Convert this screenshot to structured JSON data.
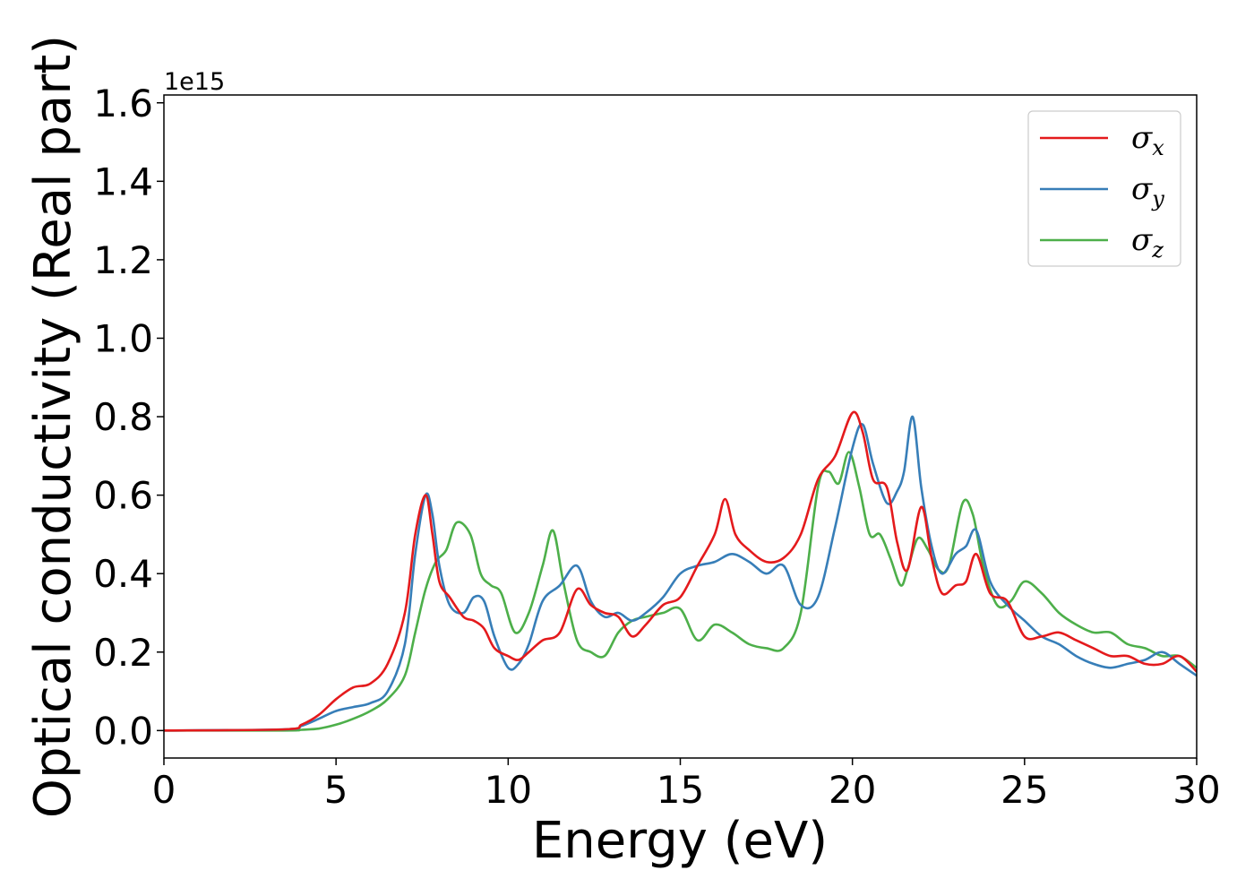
{
  "chart_data": {
    "type": "line",
    "xlabel": "Energy (eV)",
    "ylabel": "Optical conductivity (Real part)",
    "y_offset_label": "1e15",
    "xlim": [
      0,
      30
    ],
    "ylim": [
      -0.07,
      1.62
    ],
    "x_ticks": [
      0,
      5,
      10,
      15,
      20,
      25,
      30
    ],
    "x_tick_labels": [
      "0",
      "5",
      "10",
      "15",
      "20",
      "25",
      "30"
    ],
    "y_ticks": [
      0.0,
      0.2,
      0.4,
      0.6,
      0.8,
      1.0,
      1.2,
      1.4,
      1.6
    ],
    "y_tick_labels": [
      "0.0",
      "0.2",
      "0.4",
      "0.6",
      "0.8",
      "1.0",
      "1.2",
      "1.4",
      "1.6"
    ],
    "grid": false,
    "legend_position": "top-right",
    "series": [
      {
        "name": "σx",
        "symbol": "σ",
        "subscript": "x",
        "color": "#e41a1c",
        "x": [
          0,
          3.5,
          4.0,
          4.5,
          5.0,
          5.5,
          6.0,
          6.5,
          7.0,
          7.3,
          7.6,
          7.8,
          8.0,
          8.3,
          8.7,
          9.0,
          9.3,
          9.6,
          10.0,
          10.3,
          10.6,
          11.0,
          11.5,
          12.0,
          12.4,
          12.8,
          13.2,
          13.6,
          14.0,
          14.5,
          15.0,
          15.5,
          16.0,
          16.3,
          16.6,
          17.0,
          17.5,
          18.0,
          18.5,
          19.0,
          19.5,
          20.0,
          20.3,
          20.6,
          21.0,
          21.3,
          21.6,
          22.0,
          22.3,
          22.6,
          23.0,
          23.3,
          23.6,
          24.0,
          24.5,
          25.0,
          25.5,
          26.0,
          26.5,
          27.0,
          27.5,
          28.0,
          28.5,
          29.0,
          29.5,
          30.0
        ],
        "y": [
          0.0,
          0.003,
          0.015,
          0.04,
          0.08,
          0.11,
          0.12,
          0.17,
          0.3,
          0.5,
          0.6,
          0.5,
          0.38,
          0.34,
          0.29,
          0.28,
          0.26,
          0.21,
          0.19,
          0.18,
          0.2,
          0.23,
          0.25,
          0.36,
          0.32,
          0.3,
          0.29,
          0.24,
          0.27,
          0.32,
          0.34,
          0.42,
          0.5,
          0.59,
          0.5,
          0.46,
          0.43,
          0.44,
          0.5,
          0.64,
          0.7,
          0.81,
          0.76,
          0.64,
          0.62,
          0.48,
          0.41,
          0.57,
          0.44,
          0.35,
          0.37,
          0.38,
          0.45,
          0.35,
          0.33,
          0.24,
          0.24,
          0.25,
          0.23,
          0.21,
          0.19,
          0.19,
          0.17,
          0.17,
          0.19,
          0.15
        ]
      },
      {
        "name": "σy",
        "symbol": "σ",
        "subscript": "y",
        "color": "#377eb8",
        "x": [
          0,
          3.5,
          4.0,
          4.5,
          5.0,
          5.5,
          6.0,
          6.5,
          7.0,
          7.3,
          7.6,
          7.8,
          8.0,
          8.3,
          8.7,
          9.0,
          9.3,
          9.6,
          10.0,
          10.3,
          10.6,
          11.0,
          11.5,
          12.0,
          12.4,
          12.8,
          13.2,
          13.6,
          14.0,
          14.5,
          15.0,
          15.5,
          16.0,
          16.5,
          17.0,
          17.5,
          18.0,
          18.5,
          19.0,
          19.5,
          20.0,
          20.3,
          20.6,
          21.0,
          21.3,
          21.5,
          21.75,
          22.0,
          22.3,
          22.6,
          23.0,
          23.3,
          23.6,
          24.0,
          24.5,
          25.0,
          25.5,
          26.0,
          26.5,
          27.0,
          27.5,
          28.0,
          28.5,
          29.0,
          29.5,
          30.0
        ],
        "y": [
          0.0,
          0.003,
          0.012,
          0.03,
          0.05,
          0.06,
          0.07,
          0.1,
          0.22,
          0.45,
          0.6,
          0.55,
          0.42,
          0.32,
          0.3,
          0.34,
          0.33,
          0.24,
          0.16,
          0.17,
          0.22,
          0.33,
          0.37,
          0.42,
          0.33,
          0.29,
          0.3,
          0.28,
          0.3,
          0.34,
          0.4,
          0.42,
          0.43,
          0.45,
          0.43,
          0.4,
          0.42,
          0.32,
          0.34,
          0.52,
          0.72,
          0.78,
          0.68,
          0.58,
          0.61,
          0.66,
          0.8,
          0.62,
          0.47,
          0.4,
          0.45,
          0.47,
          0.51,
          0.38,
          0.32,
          0.28,
          0.24,
          0.22,
          0.19,
          0.17,
          0.16,
          0.17,
          0.18,
          0.2,
          0.17,
          0.14
        ]
      },
      {
        "name": "σz",
        "symbol": "σ",
        "subscript": "z",
        "color": "#4daf4a",
        "x": [
          0,
          3.5,
          4.0,
          4.5,
          5.0,
          5.5,
          6.0,
          6.5,
          7.0,
          7.3,
          7.6,
          7.9,
          8.2,
          8.5,
          8.9,
          9.2,
          9.5,
          9.8,
          10.2,
          10.6,
          11.0,
          11.3,
          11.6,
          12.0,
          12.4,
          12.8,
          13.2,
          13.6,
          14.0,
          14.5,
          15.0,
          15.5,
          16.0,
          16.5,
          17.0,
          17.5,
          18.0,
          18.5,
          19.0,
          19.3,
          19.6,
          19.9,
          20.2,
          20.5,
          20.8,
          21.1,
          21.4,
          21.6,
          21.9,
          22.2,
          22.5,
          22.8,
          23.2,
          23.5,
          23.8,
          24.2,
          24.6,
          25.0,
          25.5,
          26.0,
          26.5,
          27.0,
          27.5,
          28.0,
          28.5,
          29.0,
          29.5,
          30.0
        ],
        "y": [
          0.0,
          0.0,
          0.002,
          0.005,
          0.015,
          0.03,
          0.05,
          0.08,
          0.14,
          0.25,
          0.36,
          0.43,
          0.46,
          0.53,
          0.5,
          0.4,
          0.37,
          0.35,
          0.25,
          0.3,
          0.42,
          0.51,
          0.38,
          0.23,
          0.2,
          0.19,
          0.25,
          0.28,
          0.29,
          0.3,
          0.31,
          0.23,
          0.27,
          0.25,
          0.22,
          0.21,
          0.21,
          0.3,
          0.62,
          0.66,
          0.63,
          0.71,
          0.62,
          0.5,
          0.5,
          0.44,
          0.37,
          0.41,
          0.49,
          0.46,
          0.41,
          0.42,
          0.58,
          0.55,
          0.42,
          0.32,
          0.33,
          0.38,
          0.35,
          0.3,
          0.27,
          0.25,
          0.25,
          0.22,
          0.21,
          0.19,
          0.19,
          0.16
        ]
      }
    ]
  }
}
